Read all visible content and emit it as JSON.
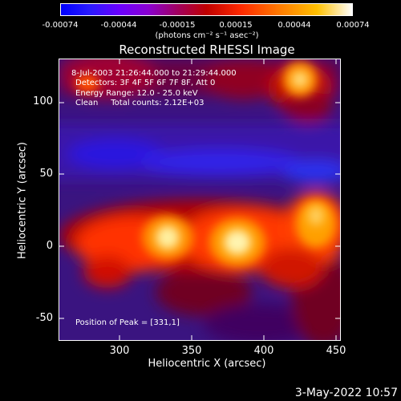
{
  "colorbar": {
    "ticks": [
      "-0.00074",
      "-0.00044",
      "-0.00015",
      "0.00015",
      "0.00044",
      "0.00074"
    ],
    "unit": "(photons cm⁻² s⁻¹ asec⁻²)"
  },
  "title": "Reconstructed RHESSI Image",
  "annotations": {
    "time_range": "8-Jul-2003 21:26:44.000 to 21:29:44.000",
    "detectors": "Detectors: 3F 4F 5F 6F 7F 8F, Att 0",
    "energy": "Energy Range: 12.0 - 25.0 keV",
    "clean": "Clean     Total counts: 2.12E+03",
    "peak": "Position of Peak = [331,1]"
  },
  "axes": {
    "xlabel": "Heliocentric X (arcsec)",
    "ylabel": "Heliocentric Y (arcsec)",
    "xticks": [
      "300",
      "350",
      "400",
      "450"
    ],
    "yticks": [
      "100",
      "50",
      "0",
      "-50"
    ]
  },
  "datestamp": "3-May-2022 10:57"
}
